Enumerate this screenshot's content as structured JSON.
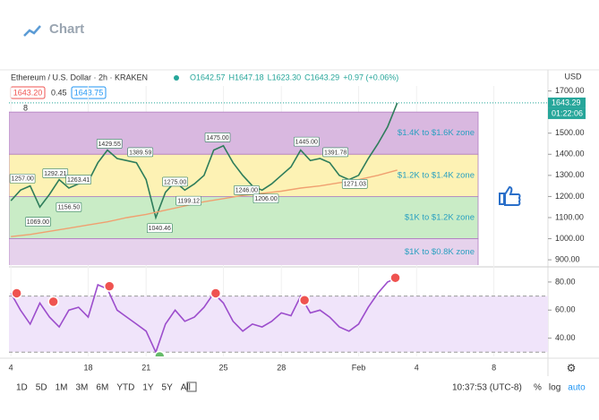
{
  "header": {
    "logo": "Chart"
  },
  "symbol": "Ethereum / U.S. Dollar · 2h · KRAKEN",
  "ohlc": [
    "O1642.57",
    "H1647.18",
    "L1623.30",
    "C1643.29",
    "+0.97 (+0.06%)"
  ],
  "bid": "1643.20",
  "spread": "0.45",
  "ask": "1643.75",
  "indicator_count": "8",
  "price_label": "1643.29",
  "countdown": "01:22:06",
  "currency": "USD",
  "ranges": [
    "1D",
    "5D",
    "1M",
    "3M",
    "6M",
    "YTD",
    "1Y",
    "5Y",
    "All"
  ],
  "clock": "10:37:53 (UTC-8)",
  "scale_options": [
    "%",
    "log",
    "auto"
  ],
  "chart_data": [
    {
      "type": "line",
      "xlim": [
        13.9,
        41.8
      ],
      "xticks": [
        {
          "value": 14,
          "label": "4"
        },
        18,
        21,
        25,
        28,
        {
          "value": 32,
          "label": "Feb"
        },
        {
          "value": 35,
          "label": "4"
        },
        {
          "value": 39,
          "label": "8"
        }
      ],
      "ylim": [
        875,
        1800
      ],
      "yticks": [
        {
          "value": 900,
          "label": "900.00"
        },
        {
          "value": 1000,
          "label": "1000.00"
        },
        {
          "value": 1100,
          "label": "1100.00"
        },
        {
          "value": 1200,
          "label": "1200.00"
        },
        {
          "value": 1300,
          "label": "1300.00"
        },
        {
          "value": 1400,
          "label": "1400.00"
        },
        {
          "value": 1500,
          "label": "1500.00"
        },
        {
          "value": 1600,
          "label": "1600.00"
        },
        {
          "value": 1700,
          "label": "1700.00"
        }
      ],
      "zones": [
        {
          "low": 1400,
          "high": 1600,
          "label": "$1.4K to $1.6K zone",
          "color": "#d9b8e0"
        },
        {
          "low": 1200,
          "high": 1400,
          "label": "$1.2K to $1.4K zone",
          "color": "#fdf2b4"
        },
        {
          "low": 1000,
          "high": 1200,
          "label": "$1K to $1.2K zone",
          "color": "#c9ecc6"
        },
        {
          "low": 800,
          "high": 1000,
          "label": "$1K to $0.8K zone",
          "color": "#e6d2ec"
        }
      ],
      "series": [
        {
          "color": "#2e7d5b",
          "x": [
            14,
            14.5,
            15,
            15.5,
            16,
            16.5,
            17,
            17.5,
            18,
            18.5,
            19,
            19.5,
            20,
            20.5,
            21,
            21.5,
            22,
            22.5,
            23,
            23.5,
            24,
            24.5,
            25,
            25.5,
            26,
            26.5,
            27,
            27.5,
            28,
            28.5,
            29,
            29.5,
            30,
            30.5,
            31,
            31.5,
            32,
            32.5,
            33,
            33.5,
            34
          ],
          "values": [
            1180,
            1230,
            1250,
            1150,
            1210,
            1280,
            1240,
            1260,
            1270,
            1360,
            1420,
            1380,
            1370,
            1360,
            1280,
            1100,
            1220,
            1270,
            1230,
            1260,
            1300,
            1420,
            1440,
            1360,
            1300,
            1250,
            1230,
            1260,
            1300,
            1340,
            1420,
            1370,
            1380,
            1360,
            1300,
            1280,
            1300,
            1380,
            1450,
            1530,
            1643.29
          ]
        },
        {
          "color": "#f0a070",
          "x": [
            14,
            15,
            16,
            17,
            18,
            19,
            20,
            21,
            22,
            23,
            24,
            25,
            26,
            27,
            28,
            29,
            30,
            31,
            32,
            33,
            34
          ],
          "values": [
            1010,
            1020,
            1035,
            1050,
            1065,
            1080,
            1100,
            1115,
            1135,
            1155,
            1175,
            1190,
            1205,
            1215,
            1225,
            1240,
            1250,
            1265,
            1280,
            1300,
            1325
          ]
        }
      ],
      "annotations": {
        "x": [
          14.6,
          16.3,
          17.5,
          17.0,
          15.4,
          19.1,
          20.7,
          21.7,
          22.5,
          23.2,
          24.7,
          26.2,
          27.2,
          29.3,
          30.8,
          31.8
        ],
        "values": [
          1285,
          1310,
          1280,
          1150,
          1080,
          1450,
          1410,
          1050,
          1270,
          1180,
          1480,
          1230,
          1190,
          1460,
          1410,
          1260
        ],
        "value_labels": [
          "1257.00",
          "1292.21",
          "1263.41",
          "1156.50",
          "1069.00",
          "1429.55",
          "1389.59",
          "1040.46",
          "1275.00",
          "1199.12",
          "1475.00",
          "1246.00",
          "1206.00",
          "1445.00",
          "1391.78",
          "1271.03"
        ]
      }
    },
    {
      "type": "line",
      "xlim": [
        13.9,
        41.8
      ],
      "ylim": [
        27,
        89.5
      ],
      "yticks": [
        {
          "value": 40,
          "label": "40.00"
        },
        {
          "value": 60,
          "label": "60.00"
        },
        {
          "value": 80,
          "label": "80.00"
        }
      ],
      "band": [
        30,
        70
      ],
      "series": [
        {
          "color": "#9c4dcc",
          "x": [
            14,
            14.5,
            15,
            15.5,
            16,
            16.5,
            17,
            17.5,
            18,
            18.5,
            19,
            19.5,
            20,
            20.5,
            21,
            21.5,
            22,
            22.5,
            23,
            23.5,
            24,
            24.5,
            25,
            25.5,
            26,
            26.5,
            27,
            27.5,
            28,
            28.5,
            29,
            29.5,
            30,
            30.5,
            31,
            31.5,
            32,
            32.5,
            33,
            33.5,
            34
          ],
          "values": [
            72,
            60,
            50,
            65,
            55,
            48,
            60,
            62,
            55,
            78,
            75,
            60,
            55,
            50,
            45,
            30,
            50,
            60,
            52,
            55,
            62,
            72,
            65,
            52,
            45,
            50,
            48,
            52,
            58,
            56,
            70,
            58,
            60,
            55,
            48,
            45,
            50,
            62,
            72,
            80,
            83
          ]
        }
      ],
      "signals": {
        "x": [
          14.3,
          16.2,
          19.1,
          24.6,
          29.2,
          33.9,
          21.7
        ],
        "values": [
          72,
          66,
          77,
          72,
          67,
          83,
          27
        ],
        "colors": [
          "#ef5350",
          "#ef5350",
          "#ef5350",
          "#ef5350",
          "#ef5350",
          "#ef5350",
          "#66bb6a"
        ]
      }
    }
  ]
}
